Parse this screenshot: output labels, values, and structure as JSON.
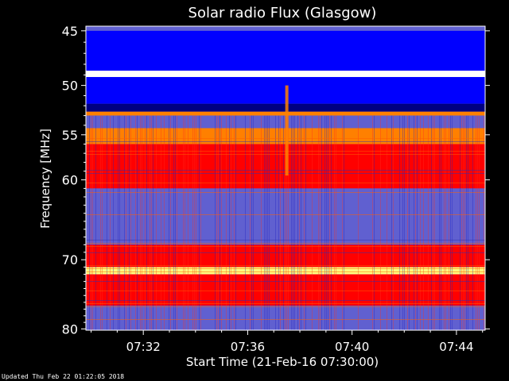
{
  "chart_data": {
    "type": "heatmap",
    "title": "Solar radio Flux (Glasgow)",
    "xlabel": "Start Time (21-Feb-16 07:30:00)",
    "ylabel": "Frequency [MHz]",
    "x_ticks": [
      "07:32",
      "07:36",
      "07:40",
      "07:44"
    ],
    "y_ticks": [
      45,
      50,
      55,
      60,
      70,
      80
    ],
    "x_range_minutes": [
      29.8,
      45.1
    ],
    "x_tick_minutes": [
      32,
      36,
      40,
      44
    ],
    "y_range_mhz": [
      44.6,
      80.2
    ],
    "y_scale": "log",
    "grid": false,
    "colormap": [
      "#000080",
      "#0000ff",
      "#6060d0",
      "#ff0000",
      "#ff8000",
      "#ffff80",
      "#ffffff"
    ],
    "frequency_bands": [
      {
        "from": 45.0,
        "to": 48.6,
        "level": 1
      },
      {
        "from": 48.6,
        "to": 49.2,
        "level": 6
      },
      {
        "from": 49.2,
        "to": 51.8,
        "level": 1
      },
      {
        "from": 51.8,
        "to": 52.6,
        "level": 0
      },
      {
        "from": 52.6,
        "to": 53.0,
        "level": 4
      },
      {
        "from": 53.0,
        "to": 54.3,
        "level": 2
      },
      {
        "from": 54.3,
        "to": 56.0,
        "level": 4
      },
      {
        "from": 56.0,
        "to": 61.0,
        "level": 3
      },
      {
        "from": 61.0,
        "to": 68.0,
        "level": 2
      },
      {
        "from": 68.0,
        "to": 71.0,
        "level": 3
      },
      {
        "from": 71.0,
        "to": 72.0,
        "level": 5
      },
      {
        "from": 72.0,
        "to": 76.5,
        "level": 3
      },
      {
        "from": 76.5,
        "to": 80.0,
        "level": 2
      }
    ],
    "burst": {
      "time_minutes": 37.5,
      "from": 50.0,
      "to": 59.5
    }
  },
  "footer": {
    "updated": "Updated Thu Feb 22 01:22:05 2018"
  }
}
